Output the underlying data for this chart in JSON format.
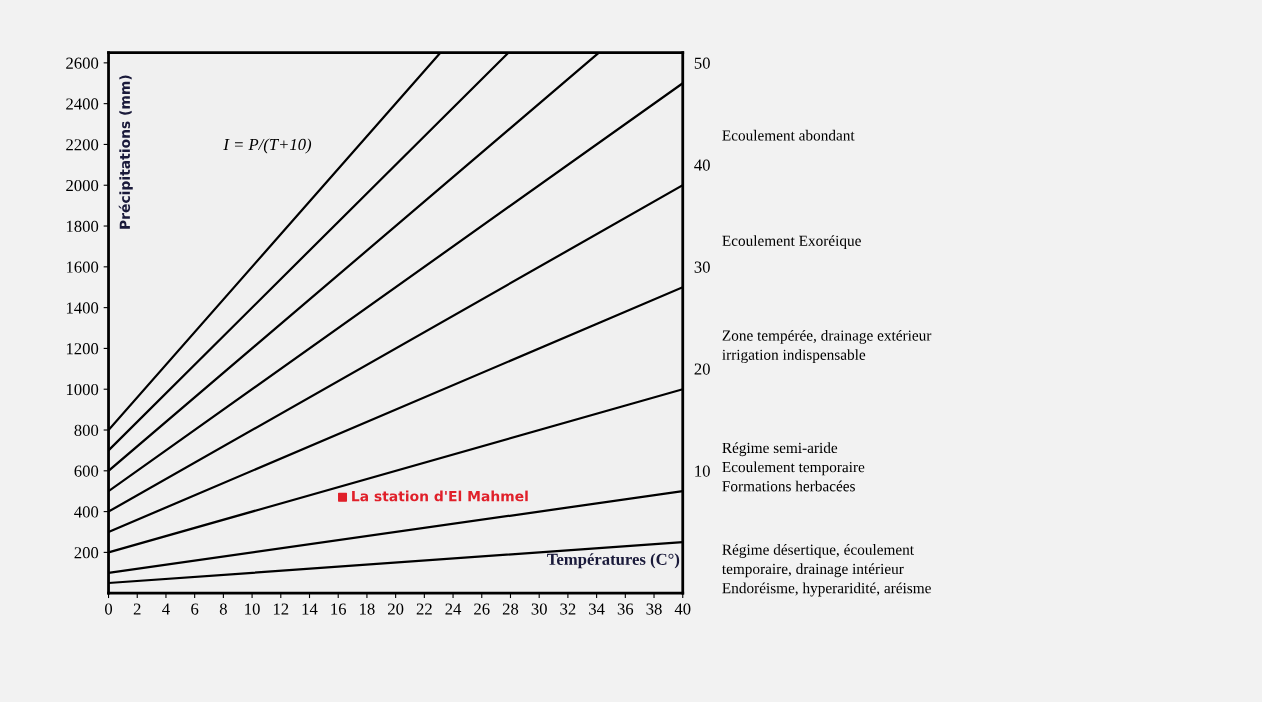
{
  "chart_data": {
    "type": "line",
    "xlabel": "Températures (C°)",
    "ylabel": "Précipitations (mm)",
    "xlim": [
      0,
      40
    ],
    "ylim": [
      0,
      2650
    ],
    "xticks": [
      0,
      2,
      4,
      6,
      8,
      10,
      12,
      14,
      16,
      18,
      20,
      22,
      24,
      26,
      28,
      30,
      32,
      34,
      36,
      38,
      40
    ],
    "yticks": [
      200,
      400,
      600,
      800,
      1000,
      1200,
      1400,
      1600,
      1800,
      2000,
      2200,
      2400,
      2600
    ],
    "grid": false,
    "legend": false,
    "marker": "none",
    "line_style": "solid",
    "series": [
      {
        "color": "#000000",
        "x": [
          0,
          40
        ],
        "values": [
          50,
          250
        ]
      },
      {
        "name": "10",
        "color": "#000000",
        "x": [
          0,
          40
        ],
        "values": [
          100,
          500
        ]
      },
      {
        "name": "20",
        "color": "#000000",
        "x": [
          0,
          40
        ],
        "values": [
          200,
          1000
        ]
      },
      {
        "name": "30",
        "color": "#000000",
        "x": [
          0,
          40
        ],
        "values": [
          300,
          1500
        ]
      },
      {
        "name": "40",
        "color": "#000000",
        "x": [
          0,
          40
        ],
        "values": [
          400,
          2000
        ]
      },
      {
        "name": "50",
        "color": "#000000",
        "x": [
          0,
          40
        ],
        "values": [
          500,
          2500
        ]
      },
      {
        "color": "#000000",
        "x": [
          0,
          34.1
        ],
        "values": [
          600,
          2646
        ]
      },
      {
        "color": "#000000",
        "x": [
          0,
          27.8
        ],
        "values": [
          700,
          2646
        ]
      },
      {
        "color": "#000000",
        "x": [
          0,
          23.1
        ],
        "values": [
          800,
          2648
        ]
      },
      {
        "type": "scatter",
        "name": "La station d'El Mahmel",
        "color": "#e0202a",
        "marker": "square",
        "x": [
          16.3
        ],
        "values": [
          470
        ]
      }
    ],
    "annotations": [
      "I = P/(T+10)",
      "Ecoulement abondant",
      "Ecoulement Exoréique",
      "Zone tempérée, drainage extérieur\nirrigation indispensable",
      "Régime semi-aride\nEcoulement temporaire\nFormations herbacées",
      "Régime désertique, écoulement\ntemporaire, drainage intérieur\nEndoréisme, hyperaridité, aréisme"
    ]
  }
}
